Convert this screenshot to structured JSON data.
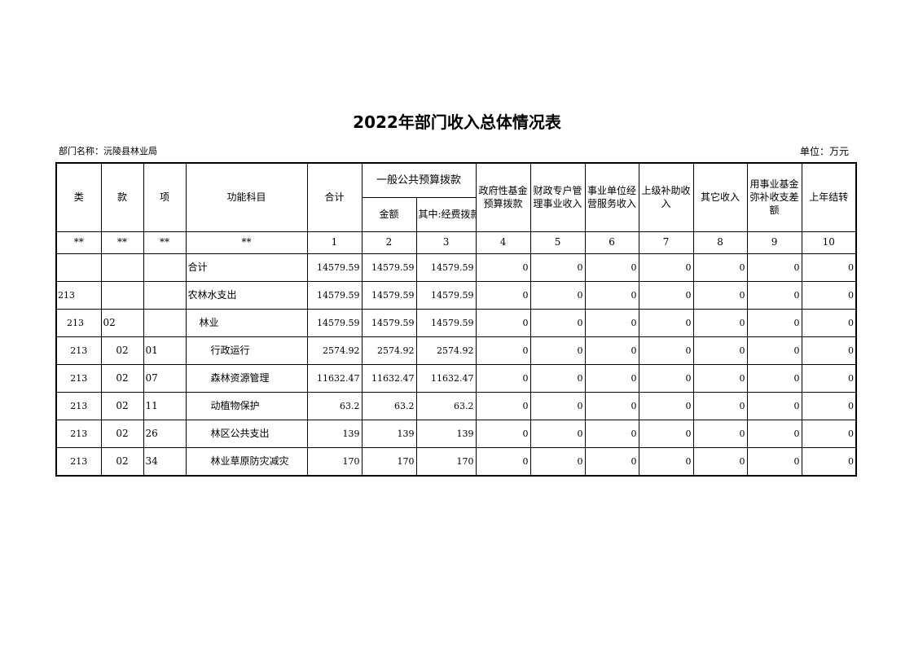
{
  "title": "2022年部门收入总体情况表",
  "dept_label": "部门名称：沅陵县林业局",
  "unit_label": "单位：万元",
  "headers": {
    "lei": "类",
    "kuan": "款",
    "xiang": "项",
    "subject": "功能科目",
    "total": "合计",
    "general": "一般公共预算拨款",
    "amount": "金额",
    "of_which": "其中:经费拨款",
    "gov_fund": "政府性基金预算拨款",
    "special": "财政专户管理事业收入",
    "operating": "事业单位经营服务收入",
    "subsidy": "上级补助收入",
    "other": "其它收入",
    "fund_offset": "用事业基金弥补收支差额",
    "carryover": "上年结转"
  },
  "index_row": [
    "**",
    "**",
    "**",
    "**",
    "1",
    "2",
    "3",
    "4",
    "5",
    "6",
    "7",
    "8",
    "9",
    "10"
  ],
  "rows": [
    {
      "lei": "",
      "kuan": "",
      "xiang": "",
      "subject": "合计",
      "level": 0,
      "values": [
        "14579.59",
        "14579.59",
        "14579.59",
        "0",
        "0",
        "0",
        "0",
        "0",
        "0",
        "0"
      ]
    },
    {
      "lei": "213",
      "kuan": "",
      "xiang": "",
      "subject": "农林水支出",
      "level": 0,
      "values": [
        "14579.59",
        "14579.59",
        "14579.59",
        "0",
        "0",
        "0",
        "0",
        "0",
        "0",
        "0"
      ]
    },
    {
      "lei": "213",
      "kuan": "02",
      "xiang": "",
      "subject": "林业",
      "level": 1,
      "values": [
        "14579.59",
        "14579.59",
        "14579.59",
        "0",
        "0",
        "0",
        "0",
        "0",
        "0",
        "0"
      ]
    },
    {
      "lei": "213",
      "kuan": "02",
      "xiang": "01",
      "subject": "行政运行",
      "level": 2,
      "values": [
        "2574.92",
        "2574.92",
        "2574.92",
        "0",
        "0",
        "0",
        "0",
        "0",
        "0",
        "0"
      ]
    },
    {
      "lei": "213",
      "kuan": "02",
      "xiang": "07",
      "subject": "森林资源管理",
      "level": 2,
      "values": [
        "11632.47",
        "11632.47",
        "11632.47",
        "0",
        "0",
        "0",
        "0",
        "0",
        "0",
        "0"
      ]
    },
    {
      "lei": "213",
      "kuan": "02",
      "xiang": "11",
      "subject": "动植物保护",
      "level": 2,
      "values": [
        "63.2",
        "63.2",
        "63.2",
        "0",
        "0",
        "0",
        "0",
        "0",
        "0",
        "0"
      ]
    },
    {
      "lei": "213",
      "kuan": "02",
      "xiang": "26",
      "subject": "林区公共支出",
      "level": 2,
      "values": [
        "139",
        "139",
        "139",
        "0",
        "0",
        "0",
        "0",
        "0",
        "0",
        "0"
      ]
    },
    {
      "lei": "213",
      "kuan": "02",
      "xiang": "34",
      "subject": "林业草原防灾减灾",
      "level": 2,
      "values": [
        "170",
        "170",
        "170",
        "0",
        "0",
        "0",
        "0",
        "0",
        "0",
        "0"
      ]
    }
  ]
}
